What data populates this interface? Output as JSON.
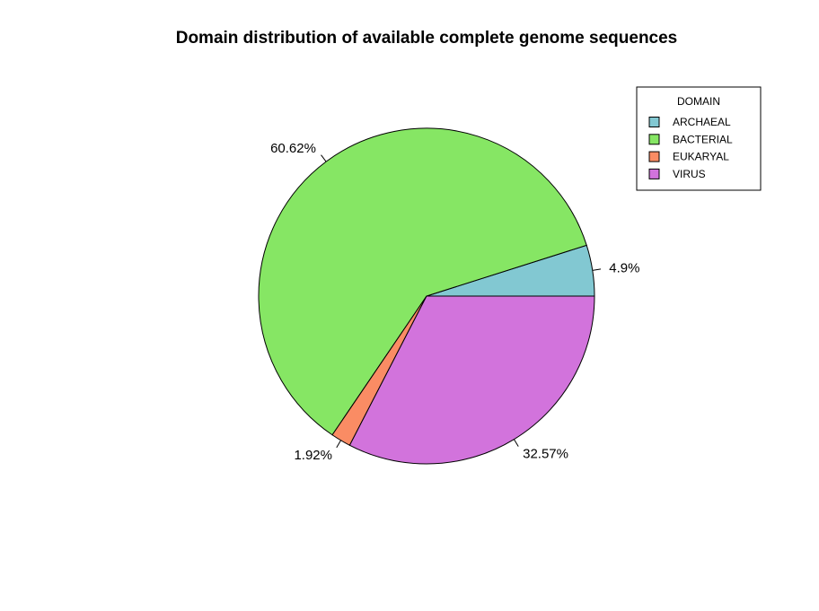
{
  "chart_data": {
    "type": "pie",
    "title": "Domain distribution of available complete genome sequences",
    "legend_title": "DOMAIN",
    "legend_position": "top-right",
    "slices": [
      {
        "label": "ARCHAEAL",
        "value": 4.9,
        "value_label": "4.9%",
        "color": "#82c8d2"
      },
      {
        "label": "BACTERIAL",
        "value": 60.62,
        "value_label": "60.62%",
        "color": "#86e664"
      },
      {
        "label": "EUKARYAL",
        "value": 1.92,
        "value_label": "1.92%",
        "color": "#fa8c64"
      },
      {
        "label": "VIRUS",
        "value": 32.57,
        "value_label": "32.57%",
        "color": "#d273dc"
      }
    ]
  }
}
